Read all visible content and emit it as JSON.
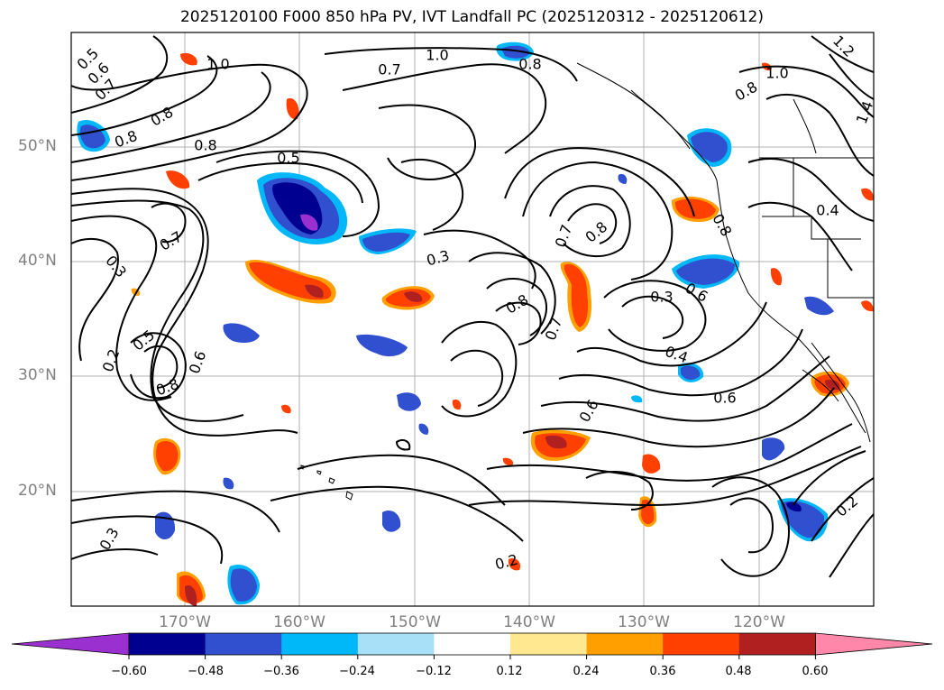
{
  "title": "2025120100 F000 850 hPa PV, IVT Landfall PC (2025120312 - 2025120612)",
  "lat_labels": [
    "50°N",
    "40°N",
    "30°N",
    "20°N"
  ],
  "lon_labels": [
    "170°W",
    "160°W",
    "150°W",
    "140°W",
    "130°W",
    "120°W"
  ],
  "contour_labels": [
    "0.5",
    "0.6",
    "0.7",
    "1.0",
    "0.7",
    "1.0",
    "0.8",
    "1.2",
    "0.8",
    "0.8",
    "1.0",
    "0.8",
    "1.4",
    "0.8",
    "0.5",
    "0.7",
    "0.8",
    "0.4",
    "0.3",
    "0.3",
    "0.7",
    "0.8",
    "0.3",
    "0.8",
    "0.6",
    "0.7",
    "0.5",
    "0.2",
    "0.8",
    "0.6",
    "0.4",
    "0.6",
    "0.6",
    "0.3",
    "0.2",
    "0.2"
  ],
  "colorbar": {
    "ticks": [
      "−0.60",
      "−0.48",
      "−0.36",
      "−0.24",
      "−0.12",
      "0.12",
      "0.24",
      "0.36",
      "0.48",
      "0.60"
    ],
    "colors": [
      "#9b30d0",
      "#000090",
      "#3050d0",
      "#00b8f8",
      "#a8e0f8",
      "#ffffff",
      "#ffe890",
      "#ffa000",
      "#ff4000",
      "#b02020",
      "#ff88aa"
    ],
    "extend": "both"
  },
  "shading_colors": {
    "purple": "#9b30d0",
    "navy": "#000090",
    "blue": "#3050d0",
    "cyan": "#00b8f8",
    "lightblue": "#a8e0f8",
    "yellow": "#ffe890",
    "orange": "#ffa000",
    "redorange": "#ff4000",
    "darkred": "#b02020"
  }
}
